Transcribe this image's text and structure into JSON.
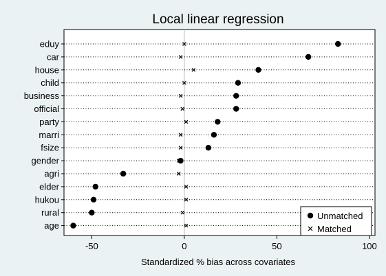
{
  "chart_data": {
    "type": "scatter",
    "title": "Local linear regression",
    "xlabel": "Standardized % bias across covariates",
    "ylabel": "",
    "xlim": [
      -65,
      103
    ],
    "xticks": [
      -50,
      0,
      50,
      100
    ],
    "tick_labels": [
      "-50",
      "0",
      "50",
      "100"
    ],
    "grid": "dotted horizontal lines per covariate",
    "legend_position": "bottom-right",
    "categories": [
      "eduy",
      "car",
      "house",
      "child",
      "business",
      "official",
      "party",
      "marri",
      "fsize",
      "gender",
      "agri",
      "elder",
      "hukou",
      "rural",
      "age"
    ],
    "series": [
      {
        "name": "Unmatched",
        "marker": "filled-circle",
        "values": [
          83,
          67,
          40,
          29,
          28,
          28,
          18,
          16,
          13,
          -2,
          -33,
          -48,
          -49,
          -50,
          -60
        ]
      },
      {
        "name": "Matched",
        "marker": "x",
        "values": [
          0,
          -2,
          5,
          0,
          -2,
          -1,
          1,
          -2,
          -2,
          -3,
          -3,
          1,
          1,
          -1,
          1
        ]
      }
    ]
  }
}
